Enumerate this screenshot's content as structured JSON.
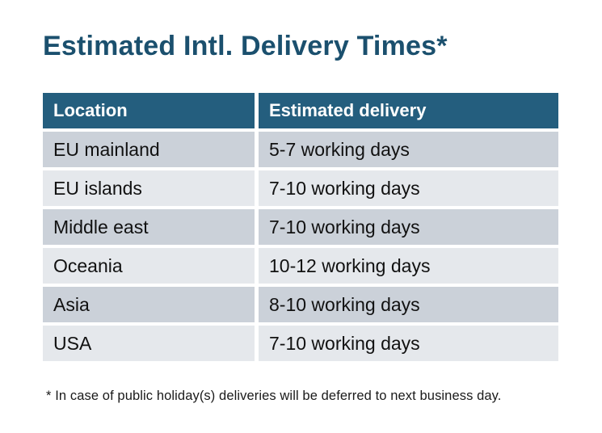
{
  "title": "Estimated Intl. Delivery Times*",
  "table": {
    "headers": [
      "Location",
      "Estimated delivery"
    ],
    "rows": [
      {
        "location": "EU mainland",
        "delivery": "5-7 working days"
      },
      {
        "location": "EU islands",
        "delivery": "7-10 working days"
      },
      {
        "location": "Middle east",
        "delivery": "7-10 working days"
      },
      {
        "location": "Oceania",
        "delivery": "10-12 working days"
      },
      {
        "location": "Asia",
        "delivery": "8-10 working days"
      },
      {
        "location": "USA",
        "delivery": "7-10 working days"
      }
    ]
  },
  "footnote": "* In case of public holiday(s) deliveries will be deferred to next business day.",
  "colors": {
    "header_bg": "#245E7E",
    "title": "#1B506E",
    "row_odd": "#CBD1D9",
    "row_even": "#E5E8EC",
    "body_text": "#111111",
    "canvas_bg": "#FFFFFF"
  }
}
